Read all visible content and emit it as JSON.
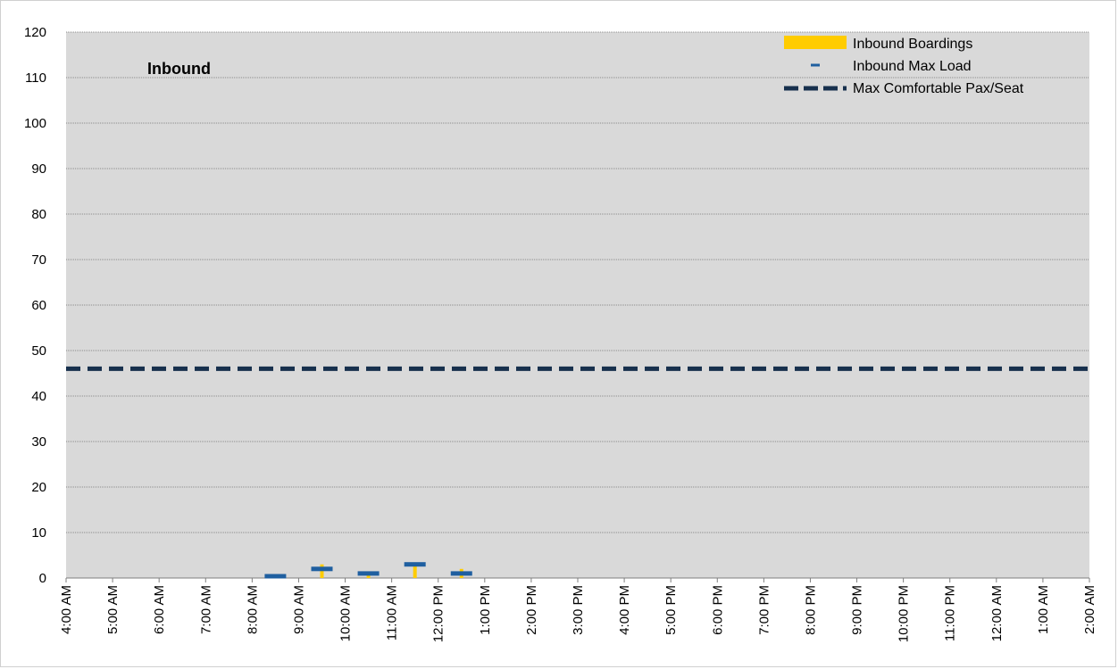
{
  "chart_data": {
    "type": "bar",
    "title": "Inbound",
    "xlabel": "",
    "ylabel": "",
    "ylim": [
      0,
      120
    ],
    "yticks": [
      0,
      10,
      20,
      30,
      40,
      50,
      60,
      70,
      80,
      90,
      100,
      110,
      120
    ],
    "categories": [
      "4:00 AM",
      "5:00 AM",
      "6:00 AM",
      "7:00 AM",
      "8:00 AM",
      "9:00 AM",
      "10:00 AM",
      "11:00 AM",
      "12:00 PM",
      "1:00 PM",
      "2:00 PM",
      "3:00 PM",
      "4:00 PM",
      "5:00 PM",
      "6:00 PM",
      "7:00 PM",
      "8:00 PM",
      "9:00 PM",
      "10:00 PM",
      "11:00 PM",
      "12:00 AM",
      "1:00 AM",
      "2:00 AM"
    ],
    "series": [
      {
        "name": "Inbound Boardings",
        "type": "bar",
        "color": "#ffcc00",
        "points": [
          {
            "x": "8:30 AM",
            "value": 0
          },
          {
            "x": "9:30 AM",
            "value": 3
          },
          {
            "x": "10:30 AM",
            "value": 1
          },
          {
            "x": "11:30 AM",
            "value": 3
          },
          {
            "x": "12:30 PM",
            "value": 2
          }
        ]
      },
      {
        "name": "Inbound Max Load",
        "type": "marker",
        "color": "#1f5fa0",
        "points": [
          {
            "x": "8:30 AM",
            "value": 0
          },
          {
            "x": "9:30 AM",
            "value": 2
          },
          {
            "x": "10:30 AM",
            "value": 1
          },
          {
            "x": "11:30 AM",
            "value": 3
          },
          {
            "x": "12:30 PM",
            "value": 1
          }
        ]
      },
      {
        "name": "Max Comfortable Pax/Seat",
        "type": "hline",
        "color": "#17304d",
        "value": 46
      }
    ],
    "legend_position": "top-right",
    "grid": true,
    "plot_background": "#d9d9d9"
  }
}
